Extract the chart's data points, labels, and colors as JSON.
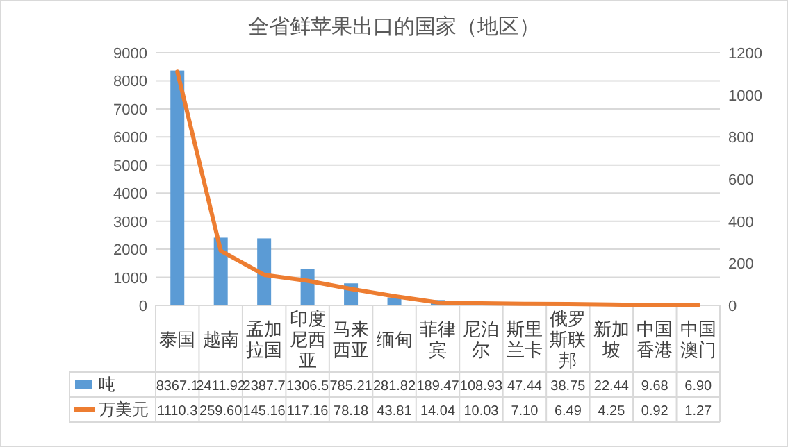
{
  "chart_data": {
    "type": "bar",
    "title": "全省鲜苹果出口的国家（地区）",
    "categories": [
      "泰国",
      "越南",
      "孟加拉国",
      "印度尼西亚",
      "马来西亚",
      "缅甸",
      "菲律宾",
      "尼泊尔",
      "斯里兰卡",
      "俄罗斯联邦",
      "新加坡",
      "中国香港",
      "中国澳门"
    ],
    "series": [
      {
        "name": "吨",
        "color": "#5b9bd5",
        "values": [
          8367.1,
          2411.92,
          2387.7,
          1306.5,
          785.21,
          281.82,
          189.47,
          108.93,
          47.44,
          38.75,
          22.44,
          9.68,
          6.9
        ],
        "value_labels": [
          "8367.1",
          "2411.92",
          "2387.7",
          "1306.5",
          "785.21",
          "281.82",
          "189.47",
          "108.93",
          "47.44",
          "38.75",
          "22.44",
          "9.68",
          "6.90"
        ]
      },
      {
        "name": "万美元",
        "type": "line",
        "axis": "y2",
        "color": "#ed7d31",
        "values": [
          1110.3,
          259.6,
          145.16,
          117.16,
          78.18,
          43.81,
          14.04,
          10.03,
          7.1,
          6.49,
          4.25,
          0.92,
          1.27
        ],
        "value_labels": [
          "1110.3",
          "259.60",
          "145.16",
          "117.16",
          "78.18",
          "43.81",
          "14.04",
          "10.03",
          "7.10",
          "6.49",
          "4.25",
          "0.92",
          "1.27"
        ]
      }
    ],
    "ylim": [
      0,
      9000
    ],
    "yticks": [
      0,
      1000,
      2000,
      3000,
      4000,
      5000,
      6000,
      7000,
      8000,
      9000
    ],
    "y2lim": [
      0,
      1200
    ],
    "y2ticks": [
      0,
      200,
      400,
      600,
      800,
      1000,
      1200
    ],
    "grid": "y",
    "legend": "bottom left"
  }
}
